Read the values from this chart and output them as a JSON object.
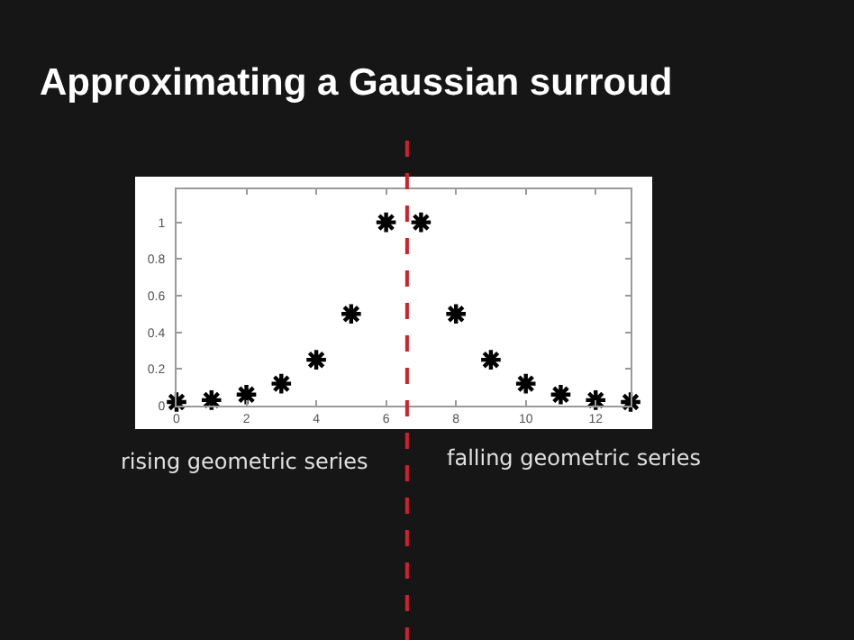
{
  "chart_data": {
    "type": "scatter",
    "title": "Approximating a Gaussian surroud",
    "x": [
      0,
      1,
      2,
      3,
      4,
      5,
      6,
      7,
      8,
      9,
      10,
      11,
      12,
      13
    ],
    "values": [
      0.02,
      0.03,
      0.06,
      0.12,
      0.25,
      0.5,
      1,
      1,
      0.5,
      0.25,
      0.12,
      0.06,
      0.03,
      0.02
    ],
    "color": "#000000",
    "marker": "cross",
    "xlim": [
      0,
      13
    ],
    "xticks": [
      0,
      2,
      4,
      6,
      8,
      10,
      12
    ],
    "ylim": [
      0,
      1.18
    ],
    "yticks": [
      0,
      0.2,
      0.4,
      0.6,
      0.8,
      1
    ],
    "ref_lines": [
      {
        "axis": "x",
        "value": 6.6,
        "color": "#d0202a",
        "line_style": "dashed"
      }
    ],
    "annotations": [
      "rising geometric series",
      "falling geometric series"
    ]
  }
}
